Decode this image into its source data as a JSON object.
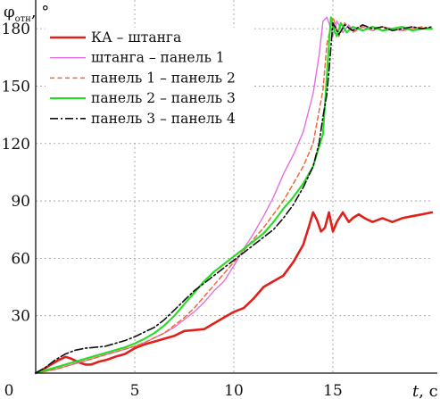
{
  "chart_data": {
    "type": "line",
    "ylabel": "φ",
    "ylabel_sub": "отн",
    "ylabel_suffix": ", °",
    "xlabel": "t",
    "xlabel_suffix": ", с",
    "xlim": [
      0,
      20
    ],
    "ylim": [
      0,
      195
    ],
    "x_ticks": [
      0,
      5,
      10,
      15
    ],
    "x_tick_labels": [
      "0",
      "5",
      "10",
      "15"
    ],
    "y_ticks": [
      30,
      60,
      90,
      120,
      150,
      180
    ],
    "y_tick_labels": [
      "30",
      "60",
      "90",
      "120",
      "150",
      "180"
    ],
    "grid": true,
    "legend_position": "top-left",
    "series": [
      {
        "name": "КА – штанга",
        "color": "#e0201b",
        "dash": "solid",
        "width": 2.6,
        "x": [
          0,
          0.3,
          0.7,
          1.1,
          1.5,
          1.8,
          2.2,
          2.5,
          2.8,
          3.2,
          3.6,
          4.0,
          4.5,
          5.0,
          5.5,
          6.0,
          6.5,
          7.0,
          7.5,
          8.0,
          8.5,
          9.0,
          9.5,
          10.0,
          10.5,
          11.0,
          11.5,
          12.0,
          12.5,
          13.0,
          13.5,
          13.8,
          14.0,
          14.2,
          14.4,
          14.6,
          14.8,
          15.0,
          15.2,
          15.5,
          15.8,
          16.0,
          16.3,
          16.6,
          17.0,
          17.5,
          18.0,
          18.5,
          19.0,
          19.5,
          20.0
        ],
        "y": [
          0,
          1.5,
          4,
          6.5,
          8.5,
          7.5,
          5.5,
          4.5,
          4.5,
          6,
          7,
          8.5,
          10,
          13,
          15,
          16.5,
          18,
          19.5,
          22,
          22.5,
          23,
          26,
          29,
          32,
          34,
          39,
          45,
          48,
          51,
          58,
          67,
          77,
          84,
          80,
          74,
          76,
          84,
          74,
          79,
          84,
          79,
          81,
          83,
          81,
          79,
          81,
          79,
          81,
          82,
          83,
          84
        ]
      },
      {
        "name": "штанга – панель 1",
        "color": "#e36fe3",
        "dash": "solid",
        "width": 1.4,
        "x": [
          0,
          0.5,
          1.0,
          1.5,
          2.0,
          2.5,
          3.0,
          3.5,
          4.0,
          4.5,
          5.0,
          5.5,
          6.0,
          6.5,
          7.0,
          7.5,
          8.0,
          8.5,
          9.0,
          9.5,
          10.0,
          10.5,
          11.0,
          11.5,
          12.0,
          12.5,
          13.0,
          13.5,
          14.0,
          14.3,
          14.5,
          14.7,
          14.9,
          15.0,
          15.2,
          15.5,
          15.8,
          16.0,
          16.5,
          17.0,
          17.5,
          18.0,
          18.5,
          19.0,
          19.5,
          20.0
        ],
        "y": [
          0,
          1,
          2,
          3.5,
          5,
          6.5,
          8,
          9.5,
          11,
          12.5,
          14,
          16,
          18.5,
          21,
          24,
          28,
          32,
          37,
          43,
          48,
          56,
          65,
          73,
          82,
          92,
          104,
          114,
          126,
          146,
          166,
          184,
          186,
          180,
          176,
          184,
          178,
          182,
          179,
          181,
          179,
          181,
          180,
          179,
          181,
          180,
          180
        ]
      },
      {
        "name": "панель 1 – панель 2",
        "color": "#f06a38",
        "dash": "5,3.5",
        "width": 1.5,
        "x": [
          0,
          0.5,
          1.0,
          1.5,
          2.0,
          2.5,
          3.0,
          3.5,
          4.0,
          4.5,
          5.0,
          5.5,
          6.0,
          6.5,
          7.0,
          7.5,
          8.0,
          8.5,
          9.0,
          9.5,
          10.0,
          10.5,
          11.0,
          11.5,
          12.0,
          12.5,
          13.0,
          13.5,
          14.0,
          14.5,
          14.7,
          15.0,
          15.3,
          15.6,
          16.0,
          16.5,
          17.0,
          17.5,
          18.0,
          18.5,
          19.0,
          19.5,
          20.0
        ],
        "y": [
          0,
          1,
          2,
          3.5,
          5,
          6.5,
          8,
          9.5,
          11,
          12.5,
          14,
          16,
          18.5,
          21,
          25,
          29,
          34,
          40,
          46,
          52,
          58,
          64,
          70,
          76,
          83,
          90,
          99,
          108,
          120,
          148,
          172,
          186,
          176,
          183,
          178,
          181,
          179,
          181,
          180,
          179,
          180,
          181,
          180
        ]
      },
      {
        "name": "панель 2 – панель 3",
        "color": "#22dd22",
        "dash": "solid",
        "width": 2.1,
        "x": [
          0,
          0.5,
          1.0,
          1.5,
          2.0,
          2.5,
          3.0,
          3.5,
          4.0,
          4.5,
          5.0,
          5.5,
          6.0,
          6.5,
          7.0,
          7.5,
          8.0,
          8.5,
          9.0,
          9.5,
          10.0,
          10.5,
          11.0,
          11.5,
          12.0,
          12.5,
          13.0,
          13.5,
          14.0,
          14.5,
          14.8,
          14.9,
          15.0,
          15.2,
          15.4,
          15.7,
          16.0,
          16.5,
          17.0,
          17.5,
          18.0,
          18.5,
          19.0,
          19.5,
          20.0
        ],
        "y": [
          0,
          1.5,
          3,
          4.5,
          6,
          7.5,
          9,
          10.5,
          12,
          13.5,
          15.5,
          18,
          21,
          25,
          30,
          36,
          42,
          48,
          53,
          57,
          61,
          65,
          69,
          73,
          79,
          86,
          92,
          99,
          108,
          125,
          172,
          186,
          181,
          176,
          183,
          178,
          181,
          179,
          181,
          179,
          180,
          181,
          179,
          180,
          180
        ]
      },
      {
        "name": "панель 3 – панель 4",
        "color": "#111111",
        "dash": "9,3,2,3",
        "width": 1.6,
        "x": [
          0,
          0.5,
          1.0,
          1.5,
          2.0,
          2.5,
          3.0,
          3.5,
          4.0,
          4.5,
          5.0,
          5.5,
          6.0,
          6.5,
          7.0,
          7.5,
          8.0,
          8.5,
          9.0,
          9.5,
          10.0,
          10.5,
          11.0,
          11.5,
          12.0,
          12.5,
          13.0,
          13.5,
          14.0,
          14.3,
          14.5,
          14.7,
          14.8,
          15.0,
          15.3,
          15.6,
          16.0,
          16.5,
          17.0,
          17.5,
          18.0,
          18.5,
          19.0,
          19.5,
          20.0
        ],
        "y": [
          0,
          3,
          7,
          10,
          12,
          13,
          13.5,
          14,
          15.5,
          17,
          19,
          21.5,
          24,
          28,
          33,
          38,
          43,
          47,
          51,
          55,
          59,
          63,
          67,
          71,
          75,
          81,
          88,
          97,
          108,
          120,
          134,
          146,
          158,
          183,
          177,
          182,
          179,
          182,
          180,
          181,
          179,
          180,
          181,
          180,
          181
        ]
      }
    ]
  }
}
